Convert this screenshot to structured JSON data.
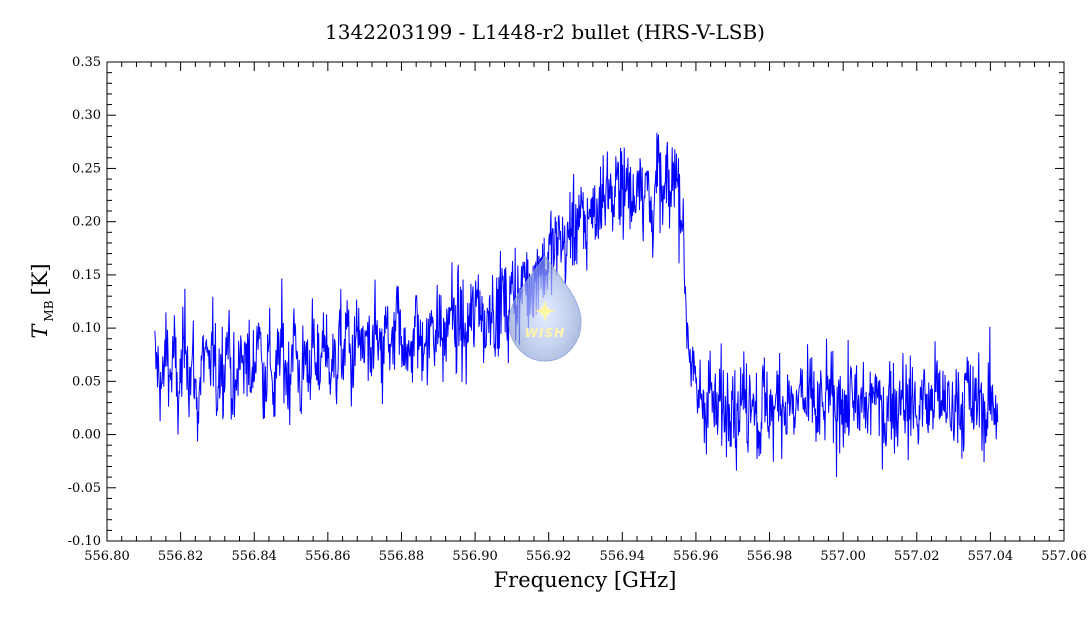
{
  "chart_data": {
    "type": "line",
    "title": "1342203199 - L1448-r2 bullet (HRS-V-LSB)",
    "xlabel": "Frequency [GHz]",
    "ylabel_main": "T",
    "ylabel_sub": "MB",
    "ylabel_unit": "[K]",
    "xlim": [
      556.8,
      557.06
    ],
    "ylim": [
      -0.1,
      0.35
    ],
    "x_ticks": [
      "556.80",
      "556.82",
      "556.84",
      "556.86",
      "556.88",
      "556.90",
      "556.92",
      "556.94",
      "556.96",
      "556.98",
      "557.00",
      "557.02",
      "557.04",
      "557.06"
    ],
    "y_ticks": [
      "-0.10",
      "-0.05",
      "0.00",
      "0.05",
      "0.10",
      "0.15",
      "0.20",
      "0.25",
      "0.30",
      "0.35"
    ],
    "grid": false,
    "line_color": "#0000ff",
    "series": [
      {
        "x_range": [
          556.813,
          557.042
        ],
        "values": [
          0.07,
          0.06,
          0.04,
          0.09,
          0.05,
          0.08,
          0.03,
          0.06,
          0.1,
          0.05,
          0.07,
          0.02,
          0.06,
          0.08,
          0.05,
          0.09,
          0.04,
          0.07,
          0.06,
          0.1,
          0.05,
          0.03,
          0.08,
          0.06,
          0.09,
          0.04,
          0.07,
          0.11,
          0.05,
          0.06,
          0.08,
          0.03,
          0.07,
          0.09,
          0.06,
          0.05,
          0.1,
          0.07,
          0.04,
          0.08,
          0.06,
          0.09,
          0.05,
          0.07,
          0.1,
          0.06,
          0.08,
          0.05,
          0.09,
          0.07,
          0.11,
          0.06,
          0.08,
          0.1,
          0.07,
          0.09,
          0.05,
          0.11,
          0.08,
          0.06,
          0.1,
          0.09,
          0.07,
          0.12,
          0.08,
          0.1,
          0.06,
          0.09,
          0.11,
          0.08,
          0.1,
          0.07,
          0.12,
          0.09,
          0.11,
          0.08,
          0.1,
          0.13,
          0.09,
          0.11,
          0.1,
          0.08,
          0.12,
          0.1,
          0.14,
          0.11,
          0.09,
          0.13,
          0.12,
          0.1,
          0.14,
          0.12,
          0.11,
          0.15,
          0.13,
          0.12,
          0.16,
          0.13,
          0.15,
          0.14,
          0.17,
          0.15,
          0.16,
          0.18,
          0.17,
          0.19,
          0.18,
          0.17,
          0.2,
          0.19,
          0.21,
          0.2,
          0.18,
          0.22,
          0.21,
          0.2,
          0.23,
          0.22,
          0.24,
          0.21,
          0.23,
          0.25,
          0.22,
          0.24,
          0.21,
          0.23,
          0.26,
          0.22,
          0.24,
          0.2,
          0.23,
          0.25,
          0.21,
          0.24,
          0.22,
          0.26,
          0.23,
          0.21,
          0.12,
          0.08,
          0.05,
          0.03,
          0.04,
          0.02,
          0.05,
          0.03,
          0.01,
          0.04,
          0.02,
          0.03,
          0.05,
          0.01,
          0.03,
          0.04,
          0.02,
          0.05,
          0.03,
          0.0,
          0.04,
          0.02,
          0.03,
          0.01,
          0.05,
          0.03,
          0.02,
          0.04,
          0.01,
          0.03,
          0.05,
          0.02,
          0.03,
          0.04,
          0.01,
          0.03,
          0.02,
          0.05,
          0.03,
          0.01,
          0.04,
          0.03,
          0.02,
          0.05,
          0.03,
          0.01,
          0.04,
          0.02,
          0.03,
          0.05,
          0.02,
          0.03,
          0.01,
          0.04,
          0.03,
          0.02,
          0.05,
          0.03,
          0.02,
          0.04,
          0.01,
          0.03,
          0.04,
          0.02,
          0.03,
          0.05,
          0.02,
          0.04,
          0.03,
          0.01,
          0.04,
          0.03,
          0.02,
          0.05,
          0.03,
          0.02,
          0.04,
          0.03,
          0.01,
          0.04,
          0.02,
          0.03
        ]
      }
    ]
  },
  "overlay": {
    "logo_text": "WISH"
  }
}
